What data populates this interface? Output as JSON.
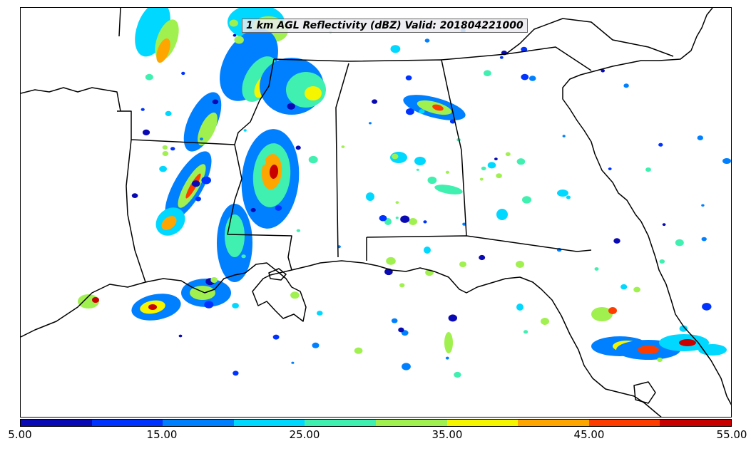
{
  "title": "1 km AGL Reflectivity (dBZ) Valid: 201804221000",
  "colorbar": {
    "colors": [
      "#0a0ab4",
      "#0033ff",
      "#0080ff",
      "#00d8ff",
      "#3ff0b0",
      "#a0f050",
      "#f5f500",
      "#ffa500",
      "#ff3c00",
      "#c80000"
    ],
    "tick_labels": [
      "5.00",
      "15.00",
      "25.00",
      "35.00",
      "45.00",
      "55.00"
    ]
  },
  "map": {
    "region": "Southeastern United States",
    "colors": {
      "boundary": "#000000",
      "background": "#ffffff"
    }
  }
}
